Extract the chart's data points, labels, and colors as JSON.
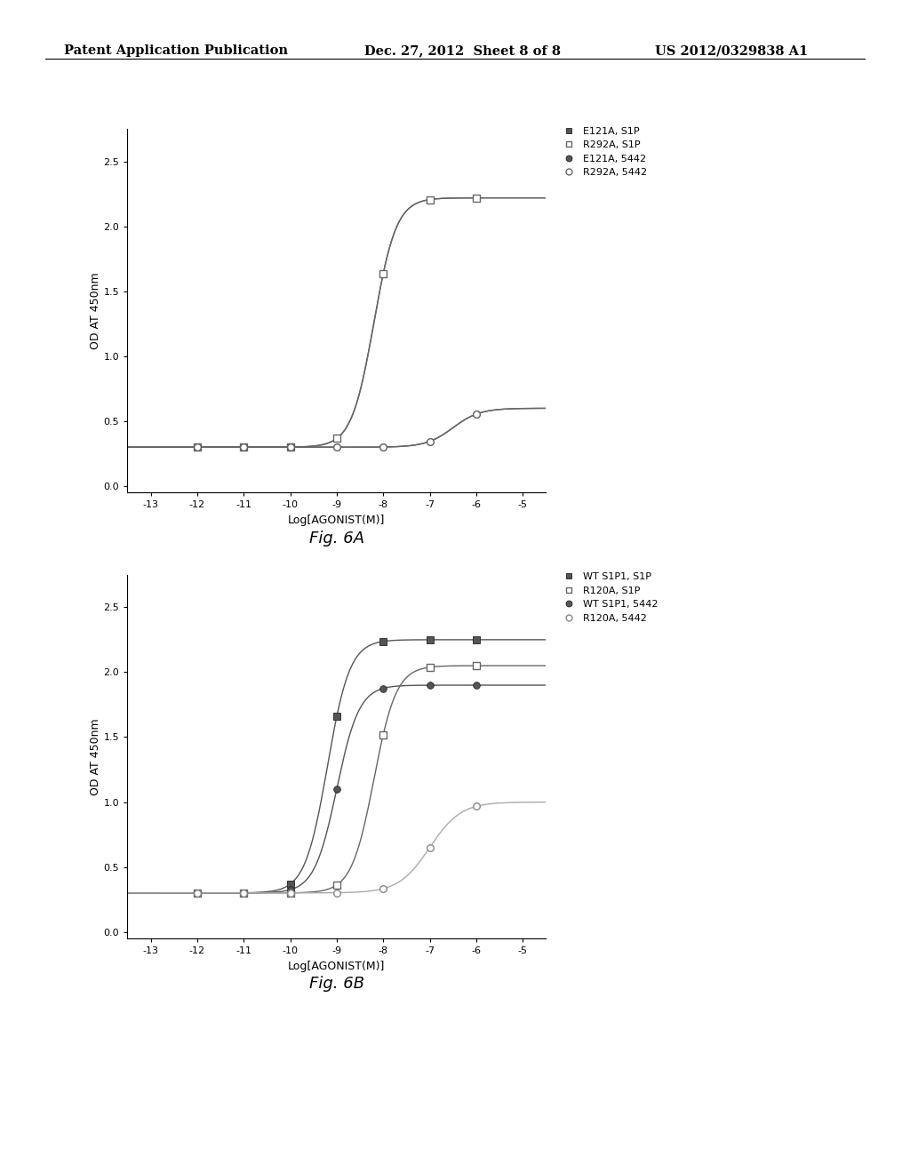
{
  "header_left": "Patent Application Publication",
  "header_center": "Dec. 27, 2012  Sheet 8 of 8",
  "header_right": "US 2012/0329838 A1",
  "fig_A": {
    "title": "Fig. 6A",
    "xlabel": "Log[AGONIST(M)]",
    "ylabel": "OD AT 450nm",
    "xlim": [
      -13.5,
      -4.5
    ],
    "ylim": [
      -0.05,
      2.75
    ],
    "xticks": [
      -13,
      -12,
      -11,
      -10,
      -9,
      -8,
      -7,
      -6,
      -5
    ],
    "yticks": [
      0.0,
      0.5,
      1.0,
      1.5,
      2.0,
      2.5
    ],
    "series": [
      {
        "label": "E121A, S1P",
        "marker": "s",
        "fillstyle": "full",
        "color": "#555555",
        "lc": "#555555",
        "baseline": 0.3,
        "top": 2.22,
        "ec50": -8.2,
        "slope": 1.8
      },
      {
        "label": "R292A, S1P",
        "marker": "s",
        "fillstyle": "none",
        "color": "#666666",
        "lc": "#666666",
        "baseline": 0.3,
        "top": 2.22,
        "ec50": -8.2,
        "slope": 1.8
      },
      {
        "label": "E121A, 5442",
        "marker": "o",
        "fillstyle": "full",
        "color": "#555555",
        "lc": "#555555",
        "baseline": 0.3,
        "top": 0.6,
        "ec50": -6.5,
        "slope": 1.5
      },
      {
        "label": "R292A, 5442",
        "marker": "o",
        "fillstyle": "none",
        "color": "#666666",
        "lc": "#666666",
        "baseline": 0.3,
        "top": 0.6,
        "ec50": -6.5,
        "slope": 1.5
      }
    ]
  },
  "fig_B": {
    "title": "Fig. 6B",
    "xlabel": "Log[AGONIST(M)]",
    "ylabel": "OD AT 450nm",
    "xlim": [
      -13.5,
      -4.5
    ],
    "ylim": [
      -0.05,
      2.75
    ],
    "xticks": [
      -13,
      -12,
      -11,
      -10,
      -9,
      -8,
      -7,
      -6,
      -5
    ],
    "yticks": [
      0.0,
      0.5,
      1.0,
      1.5,
      2.0,
      2.5
    ],
    "series": [
      {
        "label": "WT S1P1, S1P",
        "marker": "s",
        "fillstyle": "full",
        "color": "#555555",
        "lc": "#555555",
        "baseline": 0.3,
        "top": 2.25,
        "ec50": -9.2,
        "slope": 1.8
      },
      {
        "label": "R120A, S1P",
        "marker": "s",
        "fillstyle": "none",
        "color": "#666666",
        "lc": "#666666",
        "baseline": 0.3,
        "top": 2.05,
        "ec50": -8.2,
        "slope": 1.8
      },
      {
        "label": "WT S1P1, 5442",
        "marker": "o",
        "fillstyle": "full",
        "color": "#555555",
        "lc": "#555555",
        "baseline": 0.3,
        "top": 1.9,
        "ec50": -9.0,
        "slope": 1.8
      },
      {
        "label": "R120A, 5442",
        "marker": "o",
        "fillstyle": "none",
        "color": "#888888",
        "lc": "#aaaaaa",
        "baseline": 0.3,
        "top": 1.0,
        "ec50": -7.0,
        "slope": 1.3
      }
    ]
  },
  "bg_color": "#ffffff",
  "text_color": "#000000",
  "header_fontsize": 10.5,
  "axis_fontsize": 9,
  "tick_fontsize": 8,
  "legend_fontsize": 8,
  "fig_label_fontsize": 13
}
